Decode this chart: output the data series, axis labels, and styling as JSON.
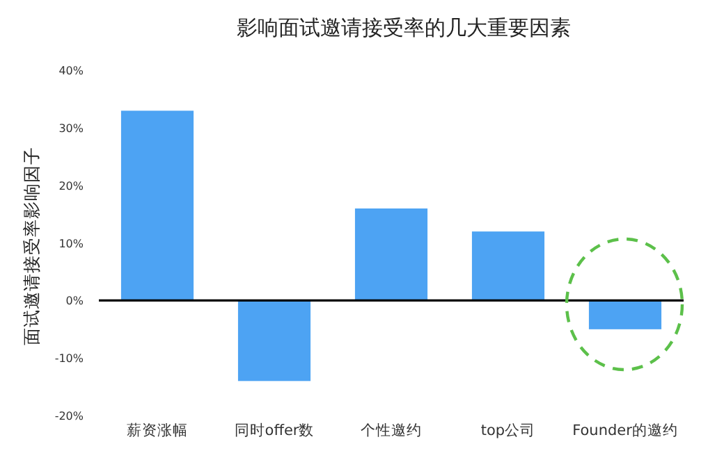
{
  "chart_data": {
    "type": "bar",
    "title": "影响面试邀请接受率的几大重要因素",
    "ylabel": "面试邀请接受率影响因子",
    "categories": [
      "薪资涨幅",
      "同时offer数",
      "个性邀约",
      "top公司",
      "Founder的邀约"
    ],
    "values": [
      33,
      -14,
      16,
      12,
      -5
    ],
    "color": "#4da3f3",
    "ylim": [
      -20,
      40
    ],
    "yticks": [
      {
        "value": -20,
        "label": "-20%"
      },
      {
        "value": -10,
        "label": "-10%"
      },
      {
        "value": 0,
        "label": "0%"
      },
      {
        "value": 10,
        "label": "10%"
      },
      {
        "value": 20,
        "label": "20%"
      },
      {
        "value": 30,
        "label": "30%"
      },
      {
        "value": 40,
        "label": "40%"
      }
    ],
    "tick_labels": true
  }
}
